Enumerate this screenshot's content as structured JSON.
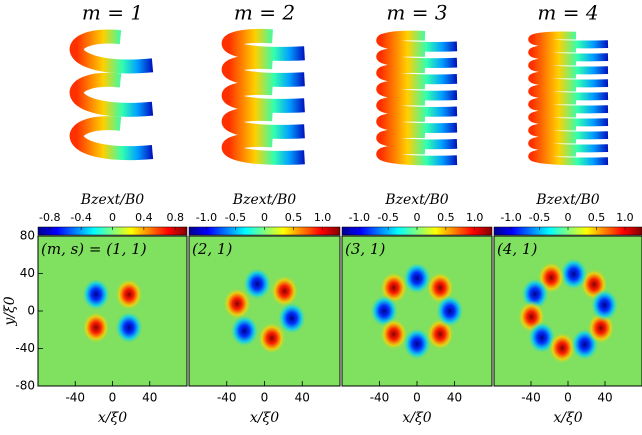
{
  "chart_data": [
    {
      "type": "heatmap",
      "title": "m = 1",
      "colorbar_label": "Bzext/B0",
      "clim": [
        -0.95,
        0.95
      ],
      "colorbar_ticks": [
        -0.8,
        -0.4,
        0,
        0.4,
        0.8
      ],
      "annotation": "(m, s) = (1, 1)",
      "xlim": [
        -80,
        80
      ],
      "ylim": [
        -80,
        80
      ],
      "xticks": [
        -40,
        0,
        40
      ],
      "yticks": [
        80,
        40,
        0,
        -40,
        -80
      ],
      "xlabel": "x/ξ0",
      "ylabel": "y/ξ0"
    },
    {
      "type": "heatmap",
      "title": "m = 2",
      "colorbar_label": "Bzext/B0",
      "clim": [
        -1.3,
        1.3
      ],
      "colorbar_ticks": [
        {
          "value": -1.0,
          "label": "-1.0"
        },
        -0.5,
        0,
        0.5,
        {
          "value": 1.0,
          "label": "1.0"
        }
      ],
      "annotation": "(2, 1)",
      "xlim": [
        -80,
        80
      ],
      "ylim": [
        -80,
        80
      ],
      "xticks": [
        -40,
        0,
        40
      ],
      "xlabel": "x/ξ0"
    },
    {
      "type": "heatmap",
      "title": "m = 3",
      "colorbar_label": "Bzext/B0",
      "clim": [
        -1.3,
        1.3
      ],
      "colorbar_ticks": [
        {
          "value": -1.0,
          "label": "-1.0"
        },
        -0.5,
        0,
        0.5,
        {
          "value": 1.0,
          "label": "1.0"
        }
      ],
      "annotation": "(3, 1)",
      "xlim": [
        -80,
        80
      ],
      "ylim": [
        -80,
        80
      ],
      "xticks": [
        -40,
        0,
        40
      ],
      "xlabel": "x/ξ0"
    },
    {
      "type": "heatmap",
      "title": "m = 4",
      "colorbar_label": "Bzext/B0",
      "clim": [
        -1.3,
        1.3
      ],
      "colorbar_ticks": [
        {
          "value": -1.0,
          "label": "-1.0"
        },
        -0.5,
        0,
        0.5,
        {
          "value": 1.0,
          "label": "1.0"
        }
      ],
      "annotation": "(4, 1)",
      "xlim": [
        -80,
        80
      ],
      "ylim": [
        -80,
        80
      ],
      "xticks": [
        -40,
        0,
        40
      ],
      "xlabel": "x/ξ0"
    }
  ]
}
